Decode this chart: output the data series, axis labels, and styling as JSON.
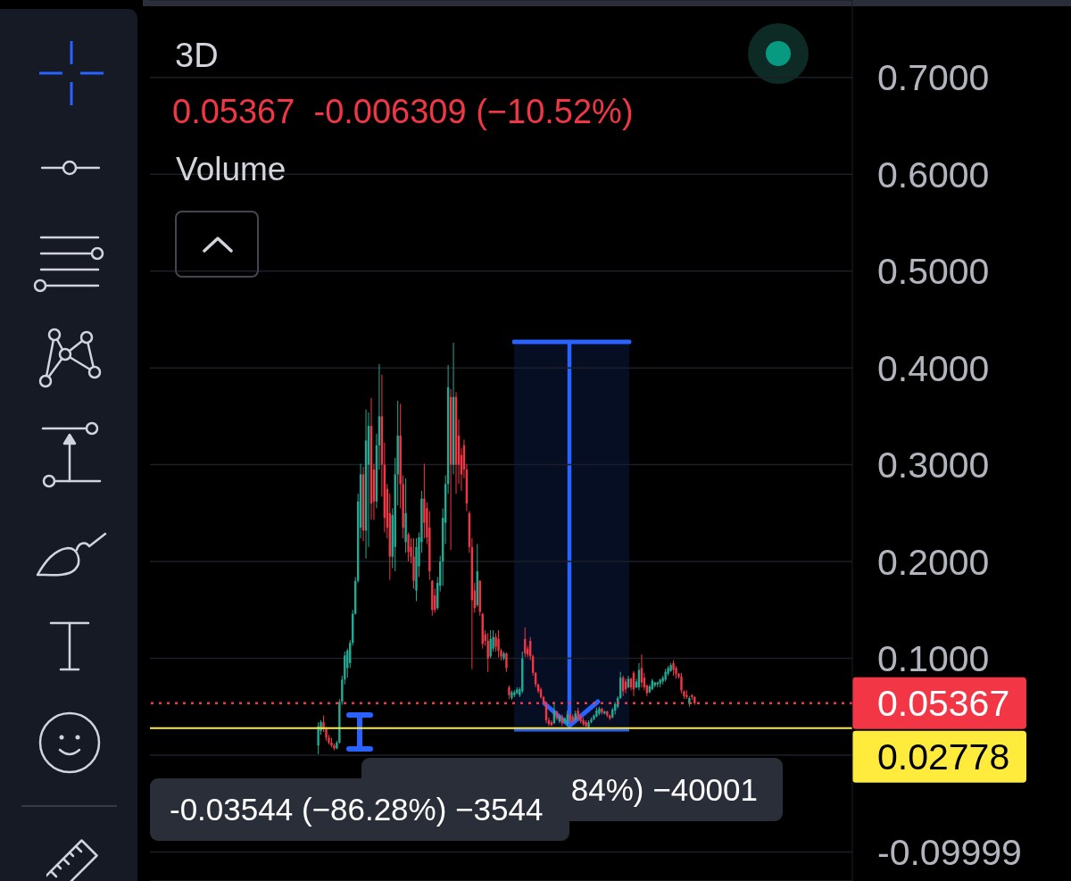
{
  "chart_data": {
    "type": "candlestick",
    "title": "3D",
    "subtitle": "0.05367  -0.006309 (−10.52%)",
    "annotations": [
      "Volume",
      "-0.03544 (−86.28%) −3544",
      "84%) −40001"
    ],
    "categories": [
      null,
      null,
      null,
      null,
      null,
      null,
      null,
      null,
      null,
      null,
      null,
      null,
      null,
      null,
      null,
      null,
      null,
      null,
      null,
      null,
      null,
      null,
      null,
      null,
      null,
      null,
      null,
      null,
      null,
      null,
      null,
      null,
      null,
      null,
      null,
      null,
      null,
      null,
      null,
      null,
      null,
      null,
      null,
      null,
      null,
      null,
      null,
      null,
      null,
      null,
      null,
      null,
      null,
      null,
      null,
      null,
      null,
      null,
      null,
      null,
      null,
      null,
      null,
      null,
      null,
      null,
      null,
      null,
      null,
      null,
      null,
      null,
      null,
      null,
      null,
      null,
      null,
      null,
      null,
      null,
      null,
      null,
      null,
      null,
      null,
      null,
      null,
      null,
      null,
      null,
      null,
      null,
      null,
      null,
      null,
      null,
      null,
      null,
      null,
      null,
      null,
      null,
      null,
      null,
      null,
      null,
      null,
      null,
      null,
      null,
      null,
      null,
      null,
      null,
      null,
      null,
      null,
      null,
      null,
      null,
      null,
      null,
      null,
      null,
      null,
      null,
      null,
      null,
      null,
      null,
      null,
      null,
      null,
      null,
      null,
      null,
      null,
      null,
      null,
      null,
      null,
      null,
      null,
      null,
      null,
      null,
      null,
      null,
      null,
      null,
      null,
      null,
      null,
      null,
      null,
      null,
      null,
      null,
      null,
      null,
      null,
      null,
      null,
      null,
      null,
      null,
      null,
      null,
      null,
      null,
      null,
      null,
      null,
      null,
      null,
      null,
      null,
      null,
      null,
      null,
      null,
      null,
      null,
      null,
      null,
      null,
      null,
      null,
      null,
      null,
      null,
      null,
      null,
      null,
      null,
      null,
      null,
      null,
      null,
      null,
      null,
      null,
      null,
      null,
      null,
      null,
      null,
      null,
      null,
      null,
      null,
      null,
      null,
      null,
      null,
      null,
      null,
      null,
      null,
      null,
      null,
      null,
      null,
      null,
      null,
      null,
      null,
      null,
      null,
      null,
      null,
      null,
      null,
      null,
      null,
      null,
      null,
      null,
      null,
      null,
      null,
      null,
      null,
      null,
      null,
      null,
      null,
      null,
      null,
      null,
      null,
      null,
      null,
      null,
      null,
      null,
      null,
      null,
      null,
      null,
      null,
      null,
      null,
      null,
      null
    ],
    "ohlc": [
      null,
      null,
      null,
      null,
      null,
      null,
      null,
      null,
      null,
      null,
      null,
      null,
      null,
      null,
      null,
      null,
      null,
      null,
      null,
      null,
      null,
      null,
      null,
      null,
      null,
      null,
      null,
      null,
      null,
      null,
      null,
      null,
      null,
      null,
      null,
      null,
      null,
      null,
      null,
      null,
      null,
      null,
      null,
      null,
      null,
      null,
      null,
      null,
      null,
      null,
      null,
      null,
      null,
      null,
      null,
      null,
      null,
      null,
      null,
      null,
      null,
      null,
      null,
      [
        0.01,
        0.034,
        0.001,
        0.03
      ],
      [
        0.025,
        0.036,
        0.021,
        0.034
      ],
      [
        0.034,
        0.041,
        0.024,
        0.027
      ],
      [
        0.027,
        0.029,
        0.015,
        0.018
      ],
      [
        0.018,
        0.021,
        0.011,
        0.013
      ],
      [
        0.013,
        0.018,
        0.008,
        0.01
      ],
      [
        0.01,
        0.012,
        0.005,
        0.007
      ],
      [
        0.007,
        0.015,
        0.006,
        0.013
      ],
      [
        0.013,
        0.058,
        0.012,
        0.055
      ],
      [
        0.055,
        0.082,
        0.052,
        0.078
      ],
      [
        0.078,
        0.107,
        0.073,
        0.103
      ],
      [
        0.09,
        0.11,
        0.08,
        0.108
      ],
      [
        0.095,
        0.119,
        0.09,
        0.116
      ],
      [
        0.116,
        0.15,
        0.113,
        0.146
      ],
      [
        0.146,
        0.184,
        0.145,
        0.18
      ],
      [
        0.18,
        0.27,
        0.178,
        0.262
      ],
      [
        0.235,
        0.301,
        0.224,
        0.29
      ],
      [
        0.29,
        0.298,
        0.221,
        0.232
      ],
      [
        0.232,
        0.357,
        0.203,
        0.325
      ],
      [
        0.3,
        0.354,
        0.215,
        0.34
      ],
      [
        0.34,
        0.369,
        0.243,
        0.26
      ],
      [
        0.295,
        0.301,
        0.243,
        0.262
      ],
      [
        0.262,
        0.332,
        0.255,
        0.32
      ],
      [
        0.32,
        0.404,
        0.295,
        0.35
      ],
      [
        0.35,
        0.393,
        0.267,
        0.3
      ],
      [
        0.3,
        0.323,
        0.23,
        0.245
      ],
      [
        0.275,
        0.28,
        0.224,
        0.235
      ],
      [
        0.25,
        0.27,
        0.181,
        0.205
      ],
      [
        0.205,
        0.255,
        0.193,
        0.248
      ],
      [
        0.215,
        0.307,
        0.19,
        0.29
      ],
      [
        0.29,
        0.366,
        0.258,
        0.33
      ],
      [
        0.33,
        0.363,
        0.255,
        0.28
      ],
      [
        0.28,
        0.289,
        0.224,
        0.235
      ],
      [
        0.22,
        0.286,
        0.209,
        0.25
      ],
      [
        0.228,
        0.23,
        0.2,
        0.21
      ],
      [
        0.215,
        0.224,
        0.198,
        0.205
      ],
      [
        0.205,
        0.224,
        0.172,
        0.18
      ],
      [
        0.17,
        0.224,
        0.159,
        0.215
      ],
      [
        0.195,
        0.23,
        0.184,
        0.225
      ],
      [
        0.22,
        0.273,
        0.209,
        0.265
      ],
      [
        0.265,
        0.301,
        0.224,
        0.24
      ],
      [
        0.255,
        0.261,
        0.218,
        0.225
      ],
      [
        0.235,
        0.252,
        0.181,
        0.19
      ],
      [
        0.18,
        0.181,
        0.144,
        0.15
      ],
      [
        0.165,
        0.172,
        0.147,
        0.15
      ],
      [
        0.152,
        0.184,
        0.15,
        0.178
      ],
      [
        0.175,
        0.206,
        0.169,
        0.2
      ],
      [
        0.2,
        0.255,
        0.175,
        0.245
      ],
      [
        0.24,
        0.289,
        0.218,
        0.28
      ],
      [
        0.28,
        0.403,
        0.27,
        0.38
      ],
      [
        0.37,
        0.378,
        0.212,
        0.3
      ],
      [
        0.3,
        0.426,
        0.29,
        0.37
      ],
      [
        0.37,
        0.375,
        0.27,
        0.3
      ],
      [
        0.33,
        0.347,
        0.28,
        0.3
      ],
      [
        0.31,
        0.317,
        0.273,
        0.29
      ],
      [
        0.32,
        0.326,
        0.286,
        0.295
      ],
      [
        0.295,
        0.301,
        0.252,
        0.26
      ],
      [
        0.25,
        0.252,
        0.209,
        0.215
      ],
      [
        0.215,
        0.224,
        0.089,
        0.16
      ],
      [
        0.17,
        0.178,
        0.147,
        0.152
      ],
      [
        0.155,
        0.218,
        0.153,
        0.19
      ],
      [
        0.18,
        0.181,
        0.144,
        0.148
      ],
      [
        0.146,
        0.147,
        0.11,
        0.115
      ],
      [
        0.125,
        0.129,
        0.113,
        0.118
      ],
      [
        0.118,
        0.126,
        0.086,
        0.1
      ],
      [
        0.102,
        0.129,
        0.1,
        0.12
      ],
      [
        0.11,
        0.129,
        0.107,
        0.122
      ],
      [
        0.122,
        0.126,
        0.107,
        0.112
      ],
      [
        0.12,
        0.129,
        0.101,
        0.108
      ],
      [
        0.108,
        0.11,
        0.098,
        0.102
      ],
      [
        0.1,
        0.107,
        0.098,
        0.105
      ],
      [
        0.105,
        0.106,
        0.086,
        0.09
      ],
      [
        0.07,
        0.072,
        0.058,
        0.062
      ],
      [
        0.059,
        0.067,
        0.057,
        0.065
      ],
      [
        0.062,
        0.067,
        0.06,
        0.065
      ],
      [
        0.064,
        0.07,
        0.063,
        0.068
      ],
      [
        0.062,
        0.07,
        0.06,
        0.068
      ],
      [
        0.066,
        0.107,
        0.064,
        0.1
      ],
      [
        0.12,
        0.132,
        0.101,
        0.105
      ],
      [
        0.11,
        0.113,
        0.101,
        0.104
      ],
      [
        0.118,
        0.122,
        0.098,
        0.102
      ],
      [
        0.102,
        0.104,
        0.082,
        0.085
      ],
      [
        0.085,
        0.086,
        0.07,
        0.073
      ],
      [
        0.073,
        0.074,
        0.064,
        0.066
      ],
      [
        0.068,
        0.07,
        0.058,
        0.06
      ],
      [
        0.06,
        0.061,
        0.052,
        0.054
      ],
      [
        0.054,
        0.055,
        0.033,
        0.036
      ],
      [
        0.036,
        0.039,
        0.03,
        0.032
      ],
      [
        0.034,
        0.036,
        0.03,
        0.031
      ],
      [
        0.033,
        0.055,
        0.032,
        0.045
      ],
      [
        0.045,
        0.046,
        0.036,
        0.038
      ],
      [
        0.035,
        0.042,
        0.033,
        0.04
      ],
      [
        0.04,
        0.042,
        0.03,
        0.033
      ],
      [
        0.034,
        0.039,
        0.033,
        0.038
      ],
      [
        0.032,
        0.046,
        0.03,
        0.042
      ],
      [
        0.042,
        0.043,
        0.033,
        0.036
      ],
      [
        0.04,
        0.042,
        0.033,
        0.035
      ],
      [
        0.036,
        0.046,
        0.035,
        0.043
      ],
      [
        0.046,
        0.049,
        0.036,
        0.038
      ],
      [
        0.04,
        0.042,
        0.033,
        0.035
      ],
      [
        0.036,
        0.039,
        0.03,
        0.032
      ],
      [
        0.034,
        0.036,
        0.029,
        0.03
      ],
      [
        0.029,
        0.036,
        0.028,
        0.034
      ],
      [
        0.034,
        0.039,
        0.033,
        0.037
      ],
      [
        0.037,
        0.042,
        0.036,
        0.041
      ],
      [
        0.04,
        0.049,
        0.039,
        0.046
      ],
      [
        0.043,
        0.05,
        0.041,
        0.048
      ],
      [
        0.048,
        0.049,
        0.042,
        0.044
      ],
      [
        0.043,
        0.046,
        0.042,
        0.045
      ],
      [
        0.045,
        0.046,
        0.039,
        0.041
      ],
      [
        0.041,
        0.042,
        0.036,
        0.038
      ],
      [
        0.039,
        0.049,
        0.038,
        0.047
      ],
      [
        0.046,
        0.055,
        0.042,
        0.053
      ],
      [
        0.05,
        0.061,
        0.048,
        0.059
      ],
      [
        0.059,
        0.086,
        0.058,
        0.08
      ],
      [
        0.08,
        0.082,
        0.061,
        0.066
      ],
      [
        0.076,
        0.079,
        0.064,
        0.068
      ],
      [
        0.07,
        0.082,
        0.069,
        0.079
      ],
      [
        0.079,
        0.08,
        0.067,
        0.07
      ],
      [
        0.085,
        0.087,
        0.061,
        0.068
      ],
      [
        0.07,
        0.079,
        0.069,
        0.076
      ],
      [
        0.07,
        0.095,
        0.067,
        0.088
      ],
      [
        0.09,
        0.104,
        0.07,
        0.075
      ],
      [
        0.08,
        0.085,
        0.067,
        0.07
      ],
      [
        0.072,
        0.073,
        0.061,
        0.064
      ],
      [
        0.065,
        0.073,
        0.064,
        0.071
      ],
      [
        0.068,
        0.079,
        0.067,
        0.077
      ],
      [
        0.072,
        0.076,
        0.07,
        0.075
      ],
      [
        0.073,
        0.076,
        0.07,
        0.075
      ],
      [
        0.074,
        0.079,
        0.07,
        0.078
      ],
      [
        0.076,
        0.082,
        0.073,
        0.08
      ],
      [
        0.078,
        0.089,
        0.076,
        0.086
      ],
      [
        0.084,
        0.092,
        0.082,
        0.09
      ],
      [
        0.087,
        0.095,
        0.086,
        0.093
      ],
      [
        0.095,
        0.098,
        0.082,
        0.088
      ],
      [
        0.09,
        0.092,
        0.079,
        0.084
      ],
      [
        0.084,
        0.085,
        0.079,
        0.081
      ],
      [
        0.081,
        0.085,
        0.064,
        0.067
      ],
      [
        0.066,
        0.067,
        0.058,
        0.061
      ],
      [
        0.062,
        0.067,
        0.058,
        0.06
      ],
      [
        0.053,
        0.061,
        0.05,
        0.059
      ],
      [
        0.062,
        0.063,
        0.057,
        0.06
      ],
      [
        0.06,
        0.061,
        0.052,
        0.05367
      ],
      null,
      null,
      null,
      null,
      null,
      null,
      null,
      null,
      null,
      null,
      null,
      null,
      null,
      null,
      null,
      null,
      null,
      null,
      null,
      null,
      null,
      null,
      null,
      null,
      null,
      null,
      null,
      null,
      null,
      null,
      null,
      null,
      null,
      null,
      null,
      null,
      null,
      null,
      null,
      null,
      null,
      null,
      null,
      null,
      null,
      null,
      null,
      null,
      null,
      null,
      null,
      null,
      null,
      null,
      null,
      null,
      null,
      null,
      null
    ],
    "colors": [
      null,
      null,
      null,
      null,
      null,
      null,
      null,
      null,
      null,
      null,
      null,
      null,
      null,
      null,
      null,
      null,
      null,
      null,
      null,
      null,
      null,
      null,
      null,
      null,
      null,
      null,
      null,
      null,
      null,
      null,
      null,
      null,
      null,
      null,
      null,
      null,
      null,
      null,
      null,
      null,
      null,
      null,
      null,
      null,
      null,
      null,
      null,
      null,
      null,
      null,
      null,
      null,
      null,
      null,
      null,
      null,
      null,
      null,
      null,
      null,
      null,
      null,
      null,
      "#22ab94",
      "#22ab94",
      "#f23645",
      "#f23645",
      "#f23645",
      "#f23645",
      "#f23645",
      "#22ab94",
      "#22ab94",
      "#22ab94",
      "#22ab94",
      "#22ab94",
      "#22ab94",
      "#22ab94",
      "#22ab94",
      "#22ab94",
      "#22ab94",
      "#f23645",
      "#22ab94",
      "#22ab94",
      "#f23645",
      "#f23645",
      "#22ab94",
      "#22ab94",
      "#f23645",
      "#f23645",
      "#f23645",
      "#f23645",
      "#22ab94",
      "#22ab94",
      "#22ab94",
      "#f23645",
      "#f23645",
      "#22ab94",
      "#f23645",
      "#f23645",
      "#f23645",
      "#22ab94",
      "#22ab94",
      "#22ab94",
      "#f23645",
      "#f23645",
      "#f23645",
      "#f23645",
      "#f23645",
      "#22ab94",
      "#22ab94",
      "#22ab94",
      "#22ab94",
      "#22ab94",
      "#f23645",
      "#22ab94",
      "#f23645",
      "#f23645",
      "#f23645",
      "#f23645",
      "#f23645",
      "#f23645",
      "#f23645",
      "#f23645",
      "#22ab94",
      "#f23645",
      "#f23645",
      "#f23645",
      "#f23645",
      "#22ab94",
      "#22ab94",
      "#f23645",
      "#f23645",
      "#f23645",
      "#22ab94",
      "#f23645",
      "#f23645",
      "#22ab94",
      "#22ab94",
      "#22ab94",
      "#22ab94",
      "#22ab94",
      "#f23645",
      "#f23645",
      "#f23645",
      "#f23645",
      "#f23645",
      "#f23645",
      "#f23645",
      "#f23645",
      "#f23645",
      "#f23645",
      "#f23645",
      "#22ab94",
      "#f23645",
      "#22ab94",
      "#f23645",
      "#22ab94",
      "#22ab94",
      "#f23645",
      "#f23645",
      "#22ab94",
      "#f23645",
      "#f23645",
      "#f23645",
      "#f23645",
      "#22ab94",
      "#22ab94",
      "#22ab94",
      "#22ab94",
      "#22ab94",
      "#f23645",
      "#22ab94",
      "#f23645",
      "#f23645",
      "#22ab94",
      "#22ab94",
      "#22ab94",
      "#22ab94",
      "#f23645",
      "#f23645",
      "#22ab94",
      "#f23645",
      "#f23645",
      "#22ab94",
      "#22ab94",
      "#f23645",
      "#f23645",
      "#f23645",
      "#22ab94",
      "#22ab94",
      "#22ab94",
      "#22ab94",
      "#22ab94",
      "#22ab94",
      "#22ab94",
      "#22ab94",
      "#22ab94",
      "#f23645",
      "#f23645",
      "#f23645",
      "#f23645",
      "#f23645",
      "#f23645",
      "#22ab94",
      "#f23645",
      "#f23645",
      null,
      null,
      null,
      null,
      null,
      null,
      null,
      null,
      null,
      null,
      null,
      null,
      null,
      null,
      null,
      null,
      null,
      null,
      null,
      null,
      null,
      null,
      null,
      null,
      null,
      null,
      null,
      null,
      null,
      null,
      null,
      null,
      null,
      null,
      null,
      null,
      null,
      null,
      null,
      null,
      null,
      null,
      null,
      null,
      null,
      null,
      null,
      null,
      null,
      null,
      null,
      null,
      null,
      null,
      null,
      null,
      null,
      null,
      null
    ],
    "ylim": [
      -0.13,
      0.78
    ],
    "yticks": [
      -0.09999,
      {
        "value": 0,
        "label": null
      },
      {
        "value": 0.1,
        "label": "0.1000"
      },
      {
        "value": 0.2,
        "label": "0.2000"
      },
      {
        "value": 0.3,
        "label": "0.3000"
      },
      {
        "value": 0.4,
        "label": "0.4000"
      },
      {
        "value": 0.5,
        "label": "0.5000"
      },
      {
        "value": 0.6,
        "label": "0.6000"
      },
      {
        "value": 0.7,
        "label": "0.7000"
      }
    ],
    "grid": "y",
    "tick_labels": "y",
    "ref_lines": [
      {
        "axis": "y",
        "value": 0.05367,
        "label": "0.05367",
        "color": "#f23645",
        "line_style": "dotted"
      },
      {
        "axis": "y",
        "value": 0.02778,
        "label": "0.02778",
        "color": "#ffeb3b",
        "line_style": "solid"
      }
    ]
  }
}
